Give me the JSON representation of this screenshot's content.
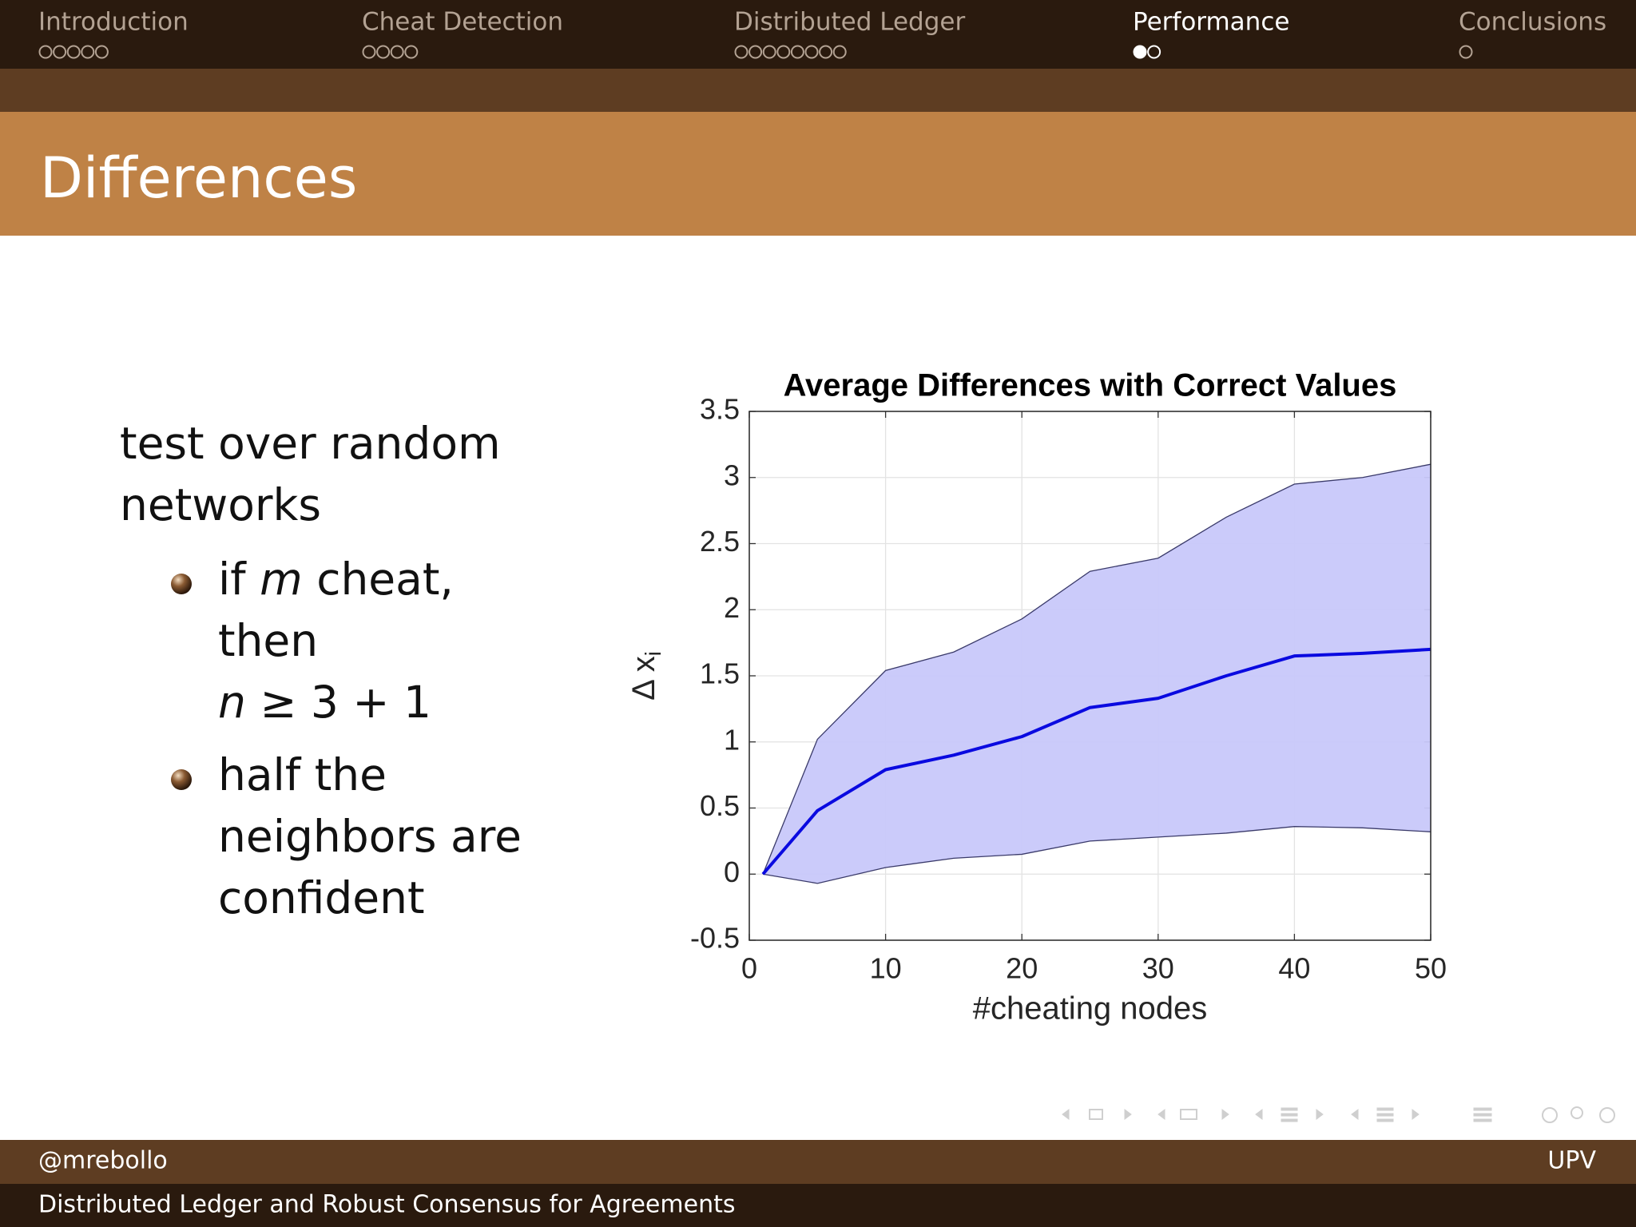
{
  "nav": [
    {
      "label": "Introduction",
      "dots": 5,
      "filled": 0,
      "active": false
    },
    {
      "label": "Cheat Detection",
      "dots": 4,
      "filled": 0,
      "active": false
    },
    {
      "label": "Distributed Ledger",
      "dots": 8,
      "filled": 0,
      "active": false
    },
    {
      "label": "Performance",
      "dots": 2,
      "filled": 1,
      "active": true
    },
    {
      "label": "Conclusions",
      "dots": 1,
      "filled": 0,
      "active": false
    }
  ],
  "title": "Differences",
  "content": {
    "intro": [
      "test over random",
      "networks"
    ],
    "bullet1": {
      "line1_start": "if",
      "line1_italic": "m",
      "line1_end": "cheat,",
      "line2": "then",
      "line3_italic": "n",
      "line3_end": "≥ 3 + 1"
    },
    "bullet2": [
      "half the",
      "neighbors are",
      "confident"
    ]
  },
  "chart_data": {
    "type": "line",
    "title": "Average Differences with Correct Values",
    "xlabel": "#cheating nodes",
    "ylabel": "Δ x",
    "ylabel_subscript": "i",
    "x": [
      1,
      5,
      10,
      15,
      20,
      25,
      30,
      35,
      40,
      45,
      50
    ],
    "series": [
      {
        "color": "#0a0ae0",
        "values": [
          0,
          0.48,
          0.79,
          0.9,
          1.04,
          1.26,
          1.33,
          1.5,
          1.65,
          1.67,
          1.7
        ]
      }
    ],
    "band": {
      "color": "#c8c8fa",
      "edge_color": "#3a3a6a",
      "upper": [
        0,
        1.02,
        1.54,
        1.68,
        1.93,
        2.29,
        2.39,
        2.7,
        2.95,
        3.0,
        3.1
      ],
      "lower": [
        0,
        -0.07,
        0.05,
        0.12,
        0.15,
        0.25,
        0.28,
        0.31,
        0.36,
        0.35,
        0.32
      ]
    },
    "xlim": [
      0,
      50
    ],
    "ylim": [
      -0.5,
      3.5
    ],
    "xticks": [
      0,
      10,
      20,
      30,
      40,
      50
    ],
    "yticks": [
      -0.5,
      0,
      0.5,
      1,
      1.5,
      2,
      2.5,
      3,
      3.5
    ],
    "grid": true
  },
  "footer": {
    "author": "@mrebollo",
    "institution": "UPV",
    "title": "Distributed Ledger and Robust Consensus for Agreements"
  }
}
